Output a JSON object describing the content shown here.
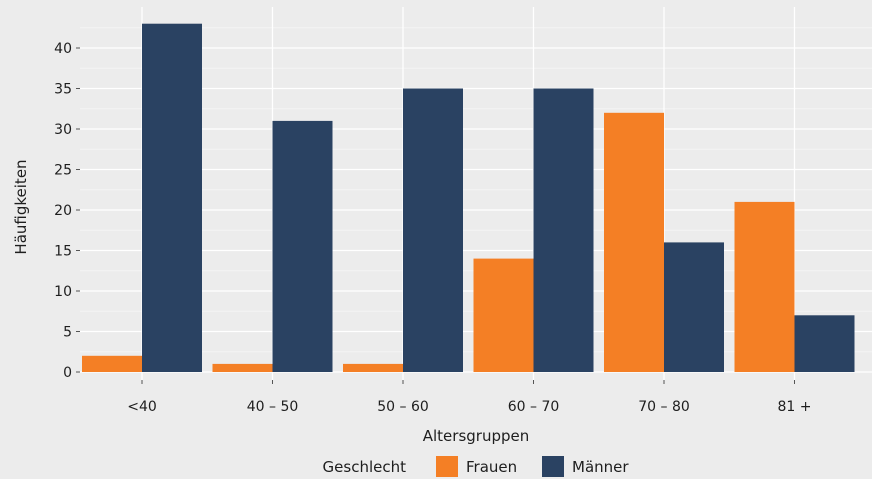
{
  "chart_data": {
    "type": "bar",
    "title": "",
    "xlabel": "Altersgruppen",
    "ylabel": "Häufigkeiten",
    "categories": [
      "<40",
      "40 – 50",
      "50 – 60",
      "60 – 70",
      "70 – 80",
      "81 +"
    ],
    "series": [
      {
        "name": "Frauen",
        "values": [
          2,
          1,
          1,
          14,
          32,
          21
        ],
        "color": "#f47f25"
      },
      {
        "name": "Männer",
        "values": [
          43,
          31,
          35,
          35,
          16,
          7
        ],
        "color": "#2a4262"
      }
    ],
    "ylim": [
      0,
      45
    ],
    "yticks": [
      0,
      5,
      10,
      15,
      20,
      25,
      30,
      35,
      40
    ],
    "grid": true,
    "legend": {
      "title": "Geschlecht",
      "position": "bottom"
    },
    "colors": {
      "background": "#ececec",
      "grid": "#ffffff"
    }
  }
}
